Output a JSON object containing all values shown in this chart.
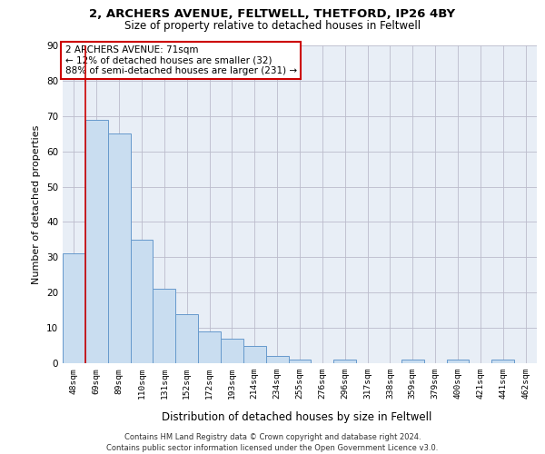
{
  "title_line1": "2, ARCHERS AVENUE, FELTWELL, THETFORD, IP26 4BY",
  "title_line2": "Size of property relative to detached houses in Feltwell",
  "xlabel": "Distribution of detached houses by size in Feltwell",
  "ylabel": "Number of detached properties",
  "categories": [
    "48sqm",
    "69sqm",
    "89sqm",
    "110sqm",
    "131sqm",
    "152sqm",
    "172sqm",
    "193sqm",
    "214sqm",
    "234sqm",
    "255sqm",
    "276sqm",
    "296sqm",
    "317sqm",
    "338sqm",
    "359sqm",
    "379sqm",
    "400sqm",
    "421sqm",
    "441sqm",
    "462sqm"
  ],
  "values": [
    31,
    69,
    65,
    35,
    21,
    14,
    9,
    7,
    5,
    2,
    1,
    0,
    1,
    0,
    0,
    1,
    0,
    1,
    0,
    1,
    0
  ],
  "bar_color": "#c9ddf0",
  "bar_edge_color": "#6699cc",
  "grid_color": "#bbbbcc",
  "background_color": "#e8eef6",
  "vline_x": 0.5,
  "vline_color": "#cc0000",
  "annotation_text": "2 ARCHERS AVENUE: 71sqm\n← 12% of detached houses are smaller (32)\n88% of semi-detached houses are larger (231) →",
  "annotation_box_facecolor": "#ffffff",
  "annotation_box_edgecolor": "#cc0000",
  "ylim": [
    0,
    90
  ],
  "yticks": [
    0,
    10,
    20,
    30,
    40,
    50,
    60,
    70,
    80,
    90
  ],
  "footer_line1": "Contains HM Land Registry data © Crown copyright and database right 2024.",
  "footer_line2": "Contains public sector information licensed under the Open Government Licence v3.0."
}
